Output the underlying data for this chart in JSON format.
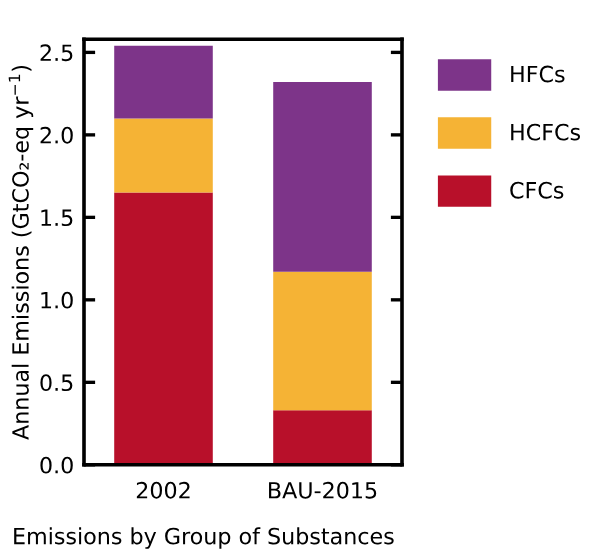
{
  "chart_data": {
    "type": "bar",
    "stacked": true,
    "xlabel": "Emissions by Group of Substances",
    "ylabel": "Annual Emissions (GtCO₂-eq yr$^{−1}$)",
    "categories": [
      "2002",
      "BAU-2015"
    ],
    "series": [
      {
        "name": "CFCs",
        "color": "#b8102a",
        "values": [
          1.65,
          0.33
        ]
      },
      {
        "name": "HCFCs",
        "color": "#f5b335",
        "values": [
          0.45,
          0.84
        ]
      },
      {
        "name": "HFCs",
        "color": "#7d3489",
        "values": [
          0.44,
          1.15
        ]
      }
    ],
    "ylim": [
      0,
      2.58
    ],
    "yticks": [
      {
        "value": 0,
        "label": "0.0"
      },
      0.5,
      {
        "value": 1,
        "label": "1.0"
      },
      1.5,
      {
        "value": 2,
        "label": "2.0"
      },
      2.5
    ],
    "grid": false,
    "legend": "right"
  }
}
